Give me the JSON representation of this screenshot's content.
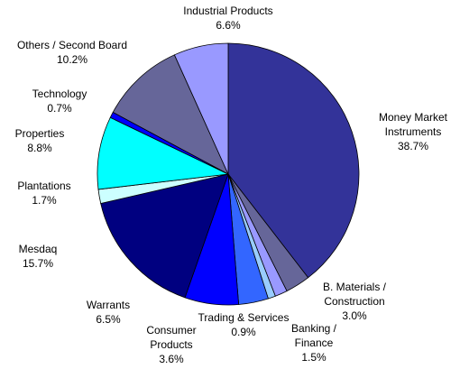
{
  "chart_data": {
    "type": "pie",
    "categories": [
      "Money Market Instruments",
      "B. Materials / Construction",
      "Banking / Finance",
      "Trading & Services",
      "Consumer Products",
      "Warrants",
      "Mesdaq",
      "Plantations",
      "Properties",
      "Technology",
      "Others / Second Board",
      "Industrial Products"
    ],
    "values": [
      38.7,
      3.0,
      1.5,
      0.9,
      3.6,
      6.5,
      15.7,
      1.7,
      8.8,
      0.7,
      10.2,
      6.6
    ],
    "value_labels": [
      "38.7%",
      "3.0%",
      "1.5%",
      "0.9%",
      "3.6%",
      "6.5%",
      "15.7%",
      "1.7%",
      "8.8%",
      "0.7%",
      "10.2%",
      "6.6%"
    ],
    "colors": [
      "#333399",
      "#666699",
      "#9999ff",
      "#99ccff",
      "#3366ff",
      "#0000ff",
      "#000080",
      "#ccffff",
      "#00ffff",
      "#0000ff",
      "#666699",
      "#9999ff"
    ]
  }
}
